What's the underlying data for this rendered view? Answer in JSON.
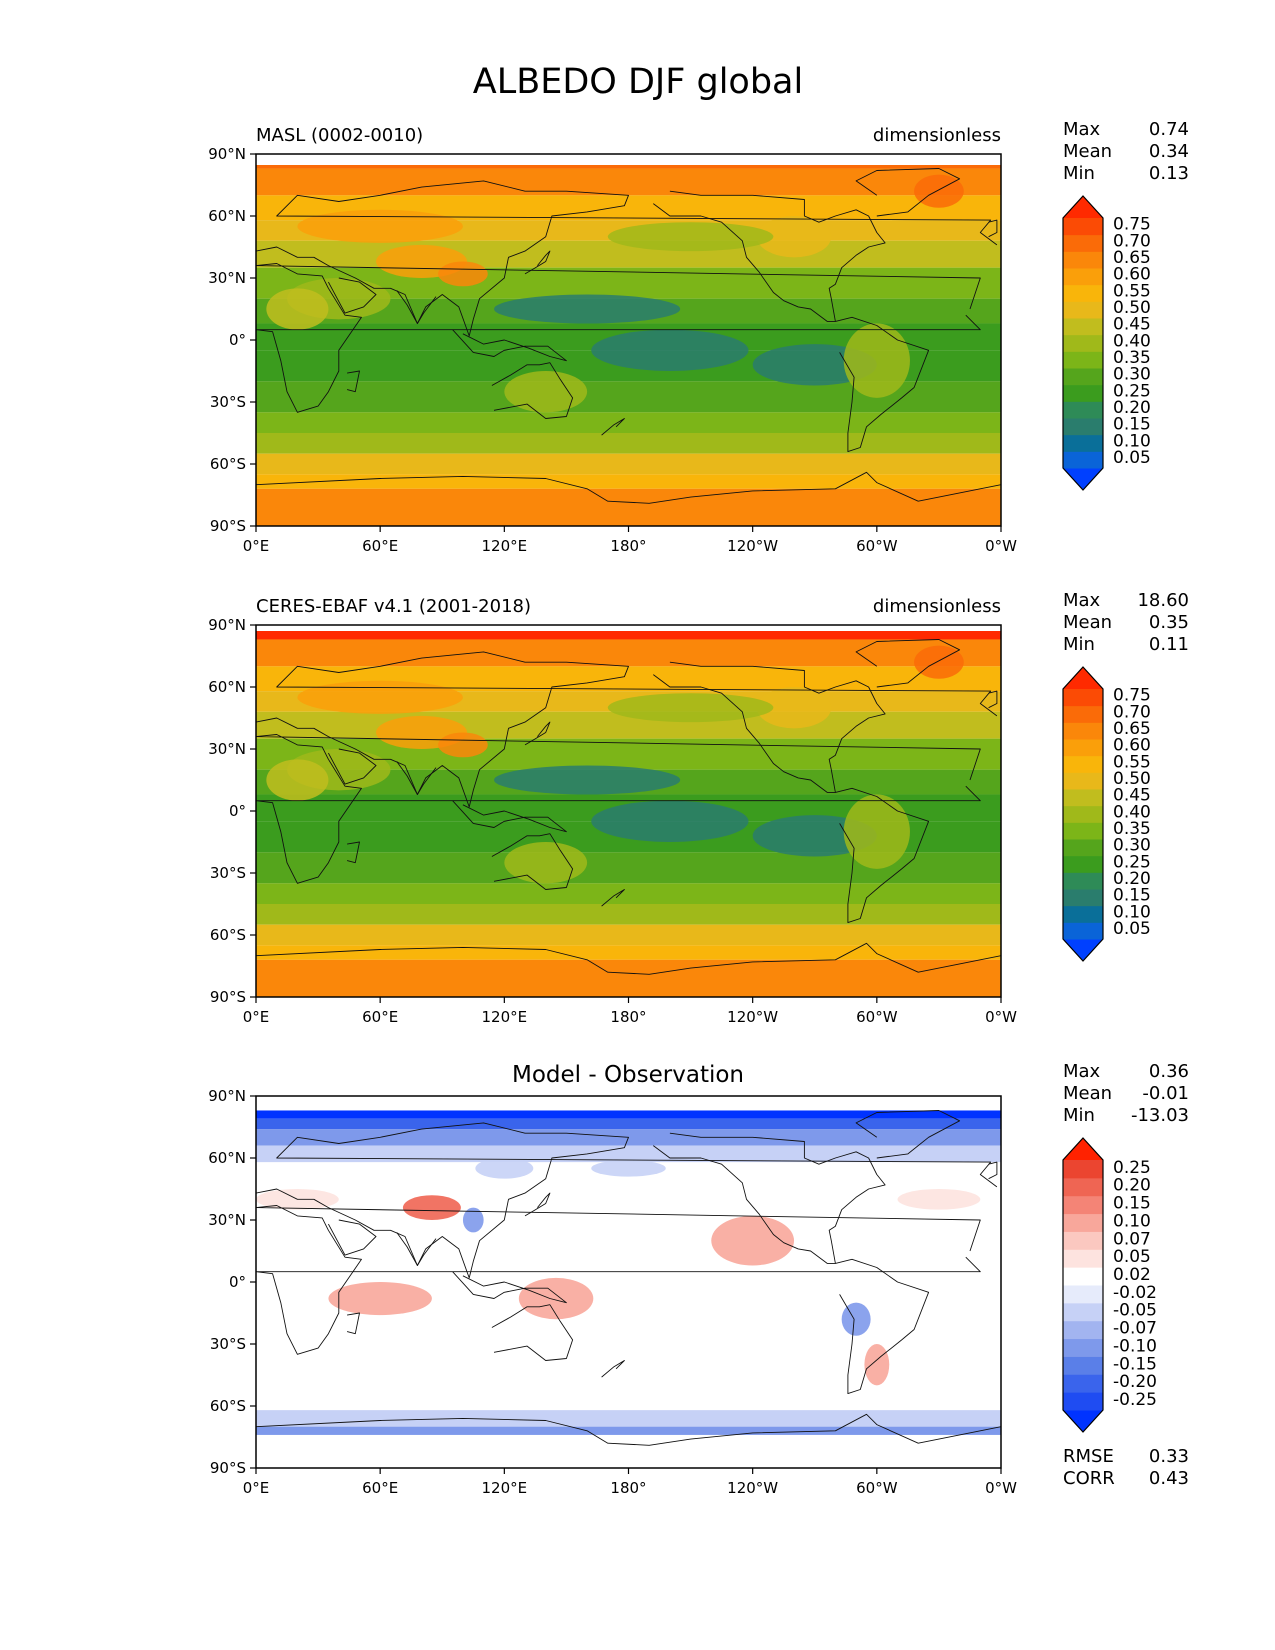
{
  "title": "ALBEDO DJF global",
  "x_ticks": [
    "0°E",
    "60°E",
    "120°E",
    "180°",
    "120°W",
    "60°W",
    "0°W"
  ],
  "y_ticks": [
    "90°N",
    "60°N",
    "30°N",
    "0°",
    "30°S",
    "60°S",
    "90°S"
  ],
  "stat_labels": {
    "max": "Max",
    "mean": "Mean",
    "min": "Min",
    "rmse": "RMSE",
    "corr": "CORR"
  },
  "panels": [
    {
      "id": "model",
      "left_title": "MASL (0002-0010)",
      "center_title": "",
      "right_title": "dimensionless",
      "stats": {
        "max": "0.74",
        "mean": "0.34",
        "min": "0.13"
      },
      "colorbar": {
        "labels": [
          "0.75",
          "0.70",
          "0.65",
          "0.60",
          "0.55",
          "0.50",
          "0.45",
          "0.40",
          "0.35",
          "0.30",
          "0.25",
          "0.20",
          "0.15",
          "0.10",
          "0.05"
        ],
        "colors": [
          "#0040ff",
          "#0a64d8",
          "#0a6f99",
          "#2a7d6d",
          "#2e8b57",
          "#3b9c1e",
          "#55a51c",
          "#7cb518",
          "#a0b91a",
          "#c1bd1e",
          "#e8b81a",
          "#f9b50a",
          "#fa9f0a",
          "#fa870a",
          "#fa6b08",
          "#fb4b05",
          "#ff2a00"
        ]
      }
    },
    {
      "id": "obs",
      "left_title": "CERES-EBAF v4.1 (2001-2018)",
      "center_title": "",
      "right_title": "dimensionless",
      "stats": {
        "max": "18.60",
        "mean": "0.35",
        "min": "0.11"
      },
      "colorbar": {
        "labels": [
          "0.75",
          "0.70",
          "0.65",
          "0.60",
          "0.55",
          "0.50",
          "0.45",
          "0.40",
          "0.35",
          "0.30",
          "0.25",
          "0.20",
          "0.15",
          "0.10",
          "0.05"
        ],
        "colors": [
          "#0040ff",
          "#0a64d8",
          "#0a6f99",
          "#2a7d6d",
          "#2e8b57",
          "#3b9c1e",
          "#55a51c",
          "#7cb518",
          "#a0b91a",
          "#c1bd1e",
          "#e8b81a",
          "#f9b50a",
          "#fa9f0a",
          "#fa870a",
          "#fa6b08",
          "#fb4b05",
          "#ff2a00"
        ]
      }
    },
    {
      "id": "diff",
      "left_title": "",
      "center_title": "Model - Observation",
      "right_title": "",
      "stats": {
        "max": "0.36",
        "mean": "-0.01",
        "min": "-13.03"
      },
      "metrics": {
        "rmse": "0.33",
        "corr": "0.43"
      },
      "colorbar": {
        "labels": [
          "0.25",
          "0.20",
          "0.15",
          "0.10",
          "0.07",
          "0.05",
          "0.02",
          "-0.02",
          "-0.05",
          "-0.07",
          "-0.10",
          "-0.15",
          "-0.20",
          "-0.25"
        ],
        "colors": [
          "#0033ff",
          "#1f4cf2",
          "#3a64ec",
          "#5a7fe8",
          "#7e99eb",
          "#a2b4f0",
          "#c6d1f6",
          "#e6ebfb",
          "#ffffff",
          "#fde3df",
          "#fbc8c0",
          "#f8a79b",
          "#f48476",
          "#ef6553",
          "#eb4530",
          "#ff2200"
        ]
      }
    }
  ],
  "field_colors": {
    "albedo": [
      "#0a6f99",
      "#2a7d6d",
      "#3b9c1e",
      "#55a51c",
      "#7cb518",
      "#a0b91a",
      "#c1bd1e",
      "#e8b81a",
      "#f9b50a",
      "#fa9f0a",
      "#fa870a",
      "#fa6b08",
      "#ff2a00"
    ],
    "diff": [
      "#0033ff",
      "#3a64ec",
      "#7e99eb",
      "#c6d1f6",
      "#ffffff",
      "#fde3df",
      "#f8a79b",
      "#ef6553",
      "#e33b22"
    ]
  }
}
